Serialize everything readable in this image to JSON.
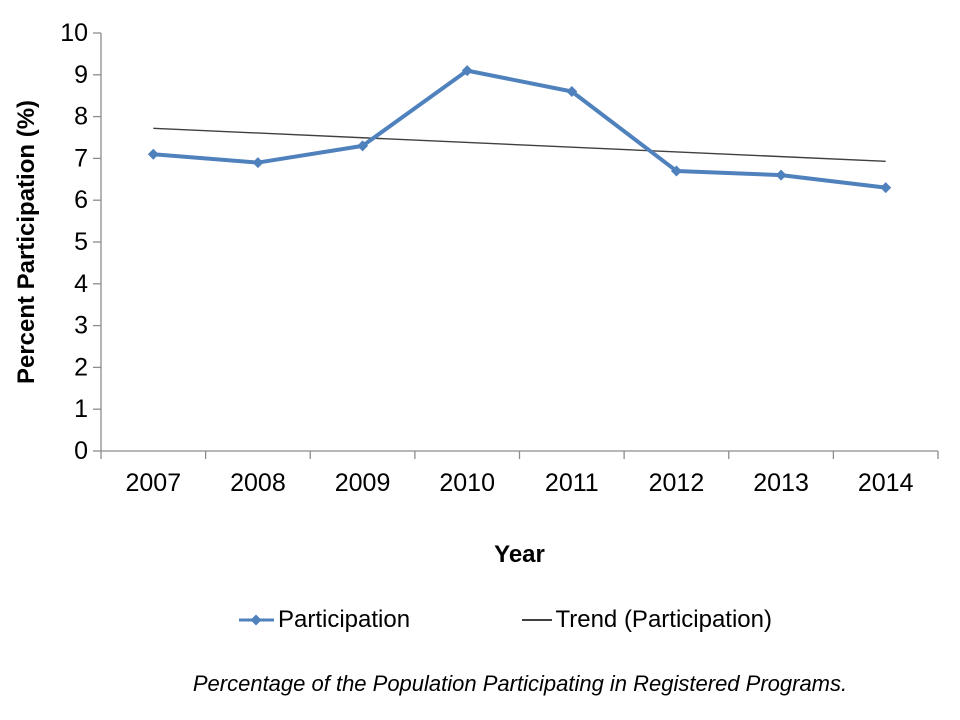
{
  "chart_data": {
    "type": "line",
    "categories": [
      "2007",
      "2008",
      "2009",
      "2010",
      "2011",
      "2012",
      "2013",
      "2014"
    ],
    "series": [
      {
        "name": "Participation",
        "values": [
          7.1,
          6.9,
          7.3,
          9.1,
          8.6,
          6.7,
          6.6,
          6.3
        ],
        "color": "#4F81BD",
        "marker": "diamond"
      },
      {
        "name": "Trend (Participation)",
        "kind": "trendline",
        "start_value": 7.72,
        "end_value": 6.93,
        "color": "#404040"
      }
    ],
    "title": "",
    "xlabel": "Year",
    "ylabel": "Percent Participation (%)",
    "ylim": [
      0,
      10
    ],
    "ytick_step": 1,
    "yticks": [
      0,
      1,
      2,
      3,
      4,
      5,
      6,
      7,
      8,
      9,
      10
    ],
    "grid": "off",
    "legend_position": "bottom",
    "caption": "Percentage of the Population Participating in Registered Programs.",
    "colors": {
      "axis": "#8C8C8C",
      "tick_label": "#000000",
      "series_blue": "#4F81BD",
      "trend_gray": "#404040"
    }
  }
}
